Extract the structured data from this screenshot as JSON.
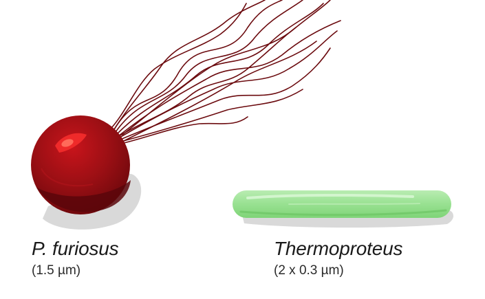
{
  "organisms": [
    {
      "name": "P. furiosus",
      "size": "(1.5 µm)",
      "shape": "coccus-with-flagella",
      "color": "#8b0d12"
    },
    {
      "name": "Thermoproteus",
      "size": "(2 x 0.3 µm)",
      "shape": "rod",
      "color": "#8fdb8a"
    }
  ]
}
